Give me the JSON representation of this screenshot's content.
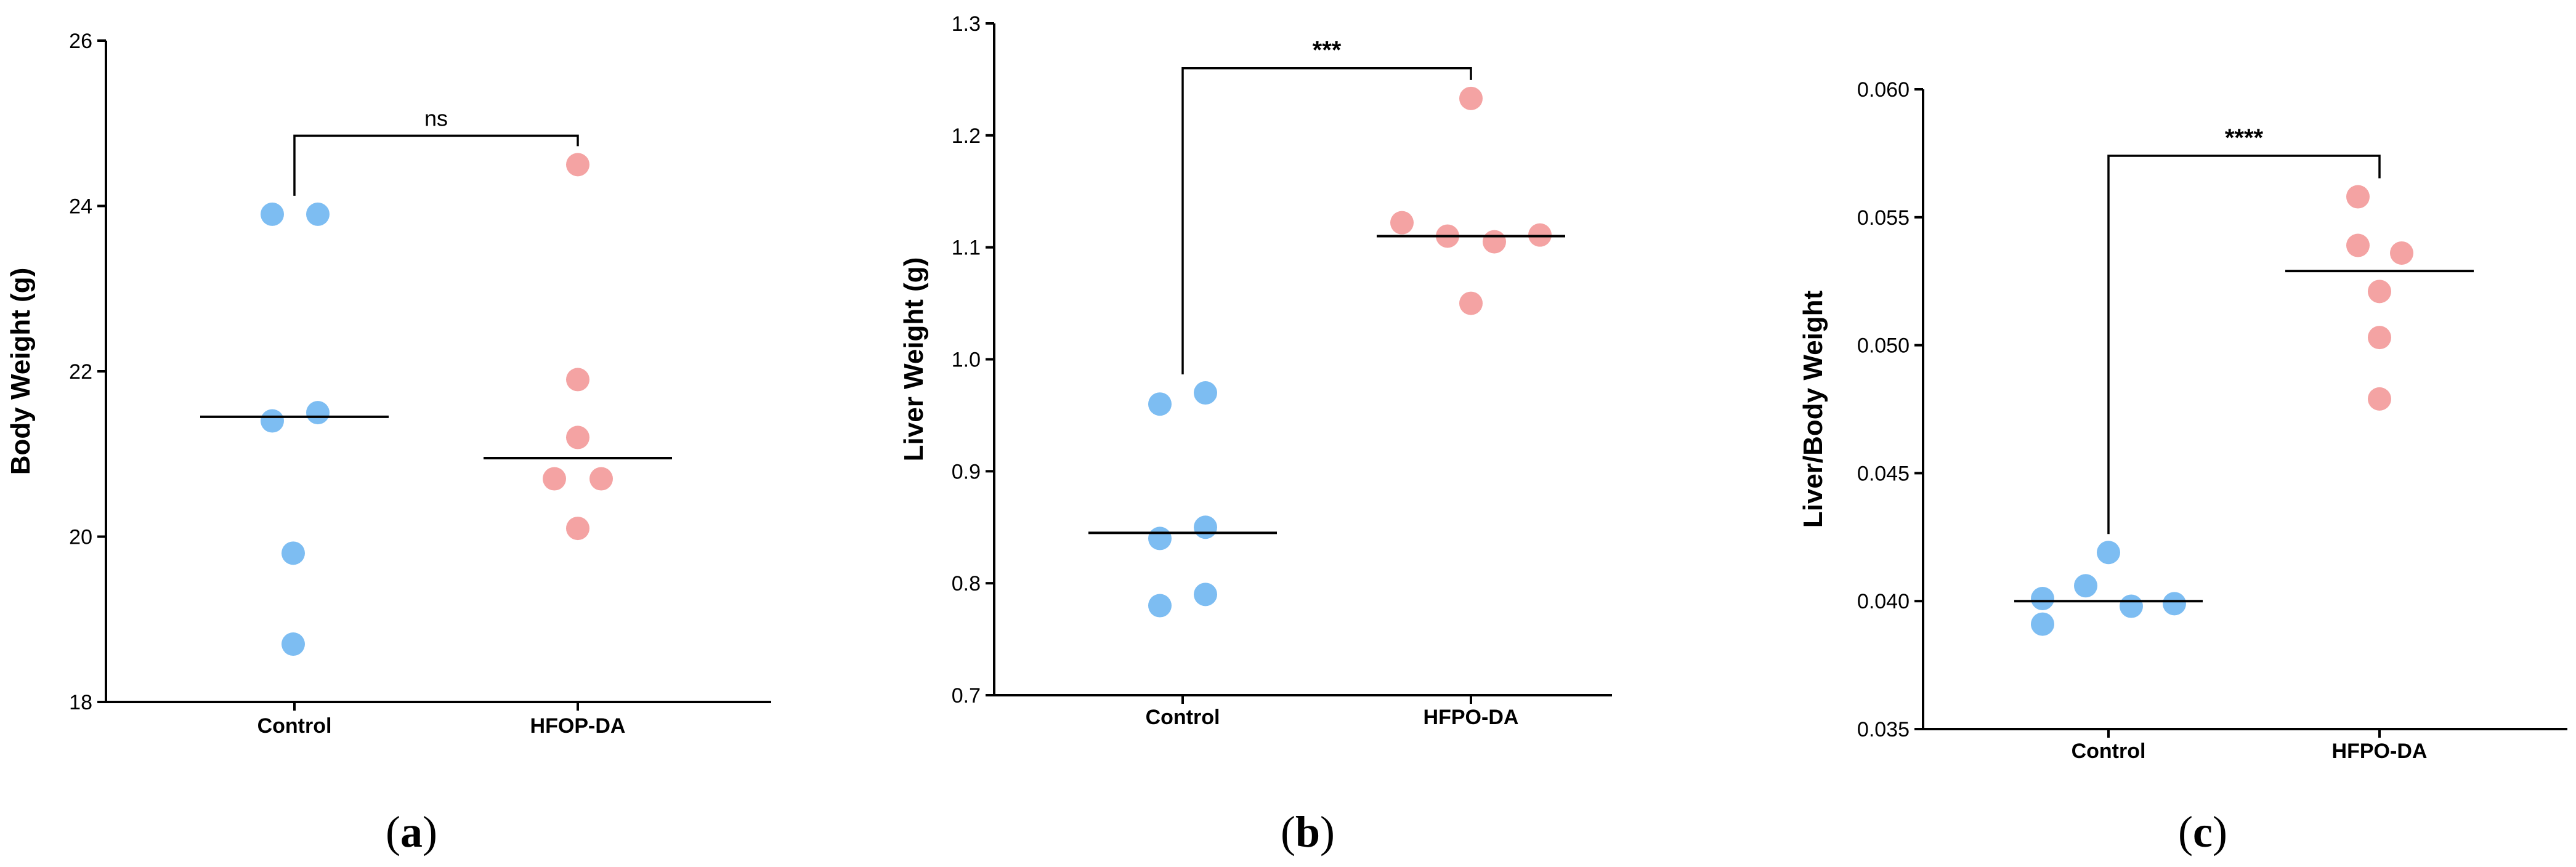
{
  "colors": {
    "control": "#7DBDF2",
    "treated": "#F4A3A3",
    "axis": "#000000"
  },
  "chart_data": [
    {
      "type": "scatter",
      "panel_label": "a",
      "ylabel": "Body Weight (g)",
      "ylim": [
        18,
        26
      ],
      "yticks": [
        "18",
        "20",
        "22",
        "24",
        "26"
      ],
      "yticks_values": [
        18,
        20,
        22,
        24,
        26
      ],
      "categories": [
        "Control",
        "HFOP-DA"
      ],
      "series": [
        {
          "name": "Control",
          "values": [
            23.9,
            23.9,
            21.4,
            21.5,
            19.8,
            18.7
          ],
          "median": 21.45
        },
        {
          "name": "HFOP-DA",
          "values": [
            24.5,
            21.9,
            21.2,
            20.7,
            20.7,
            20.1
          ],
          "median": 20.95
        }
      ],
      "significance": {
        "label": "ns",
        "bracket_y": 24.85
      }
    },
    {
      "type": "scatter",
      "panel_label": "b",
      "ylabel": "Liver Weight (g)",
      "ylim": [
        0.7,
        1.3
      ],
      "yticks": [
        "0.7",
        "0.8",
        "0.9",
        "1.0",
        "1.1",
        "1.2",
        "1.3"
      ],
      "yticks_values": [
        0.7,
        0.8,
        0.9,
        1.0,
        1.1,
        1.2,
        1.3
      ],
      "categories": [
        "Control",
        "HFPO-DA"
      ],
      "series": [
        {
          "name": "Control",
          "values": [
            0.96,
            0.97,
            0.84,
            0.85,
            0.78,
            0.79
          ],
          "median": 0.845
        },
        {
          "name": "HFPO-DA",
          "values": [
            1.233,
            1.122,
            1.11,
            1.105,
            1.111,
            1.05
          ],
          "median": 1.11
        }
      ],
      "significance": {
        "label": "***",
        "bracket_y": 1.26
      }
    },
    {
      "type": "scatter",
      "panel_label": "c",
      "ylabel": "Liver/Body Weight",
      "ylim": [
        0.035,
        0.06
      ],
      "yticks": [
        "0.035",
        "0.040",
        "0.045",
        "0.050",
        "0.055",
        "0.060"
      ],
      "yticks_values": [
        0.035,
        0.04,
        0.045,
        0.05,
        0.055,
        0.06
      ],
      "categories": [
        "Control",
        "HFPO-DA"
      ],
      "series": [
        {
          "name": "Control",
          "values": [
            0.0391,
            0.0401,
            0.0406,
            0.0419,
            0.0398,
            0.0399
          ],
          "median": 0.04
        },
        {
          "name": "HFPO-DA",
          "values": [
            0.0558,
            0.0539,
            0.0536,
            0.0521,
            0.0503,
            0.0479
          ],
          "median": 0.0529
        }
      ],
      "significance": {
        "label": "****",
        "bracket_y": 0.0574
      }
    }
  ]
}
